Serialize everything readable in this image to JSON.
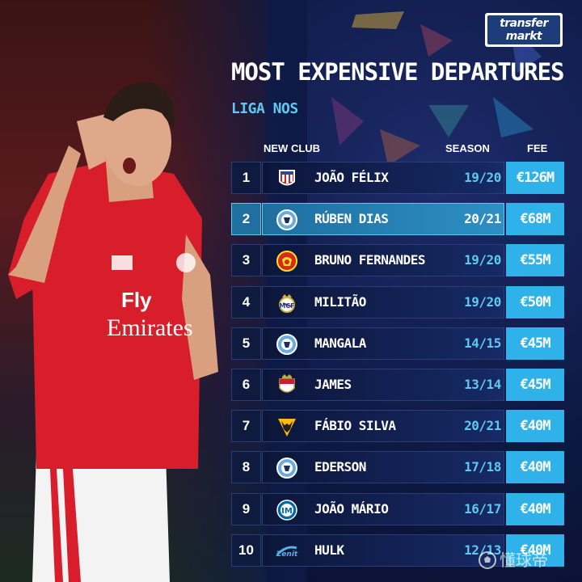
{
  "header": {
    "logo_line1": "transfer",
    "logo_line2": "markt",
    "title": "MOST EXPENSIVE DEPARTURES",
    "subtitle": "LIGA NOS"
  },
  "columns": {
    "new_club": "NEW CLUB",
    "season": "SEASON",
    "fee": "FEE"
  },
  "rows": [
    {
      "rank": "1",
      "club_icon": "atletico-madrid-crest",
      "player": "JOÃO FÉLIX",
      "season": "19/20",
      "fee": "€126M",
      "highlight": false
    },
    {
      "rank": "2",
      "club_icon": "manchester-city-crest",
      "player": "RÚBEN DIAS",
      "season": "20/21",
      "fee": "€68M",
      "highlight": true
    },
    {
      "rank": "3",
      "club_icon": "manchester-united-crest",
      "player": "BRUNO FERNANDES",
      "season": "19/20",
      "fee": "€55M",
      "highlight": false
    },
    {
      "rank": "4",
      "club_icon": "real-madrid-crest",
      "player": "MILITÃO",
      "season": "19/20",
      "fee": "€50M",
      "highlight": false
    },
    {
      "rank": "5",
      "club_icon": "manchester-city-crest",
      "player": "MANGALA",
      "season": "14/15",
      "fee": "€45M",
      "highlight": false
    },
    {
      "rank": "6",
      "club_icon": "as-monaco-crest",
      "player": "JAMES",
      "season": "13/14",
      "fee": "€45M",
      "highlight": false
    },
    {
      "rank": "7",
      "club_icon": "wolves-crest",
      "player": "FÁBIO SILVA",
      "season": "20/21",
      "fee": "€40M",
      "highlight": false
    },
    {
      "rank": "8",
      "club_icon": "manchester-city-crest",
      "player": "EDERSON",
      "season": "17/18",
      "fee": "€40M",
      "highlight": false
    },
    {
      "rank": "9",
      "club_icon": "inter-milan-crest",
      "player": "JOÃO MÁRIO",
      "season": "16/17",
      "fee": "€40M",
      "highlight": false
    },
    {
      "rank": "10",
      "club_icon": "zenit-crest",
      "player": "HULK",
      "season": "12/13",
      "fee": "€40M",
      "highlight": false
    }
  ],
  "watermark": {
    "text": "懂球帝"
  },
  "colors": {
    "background": "#0e1a45",
    "accent": "#2fb2ea",
    "subtitle": "#5ec9f0",
    "highlight_row": "#1f6f9f",
    "jersey_red": "#d81e2a"
  }
}
